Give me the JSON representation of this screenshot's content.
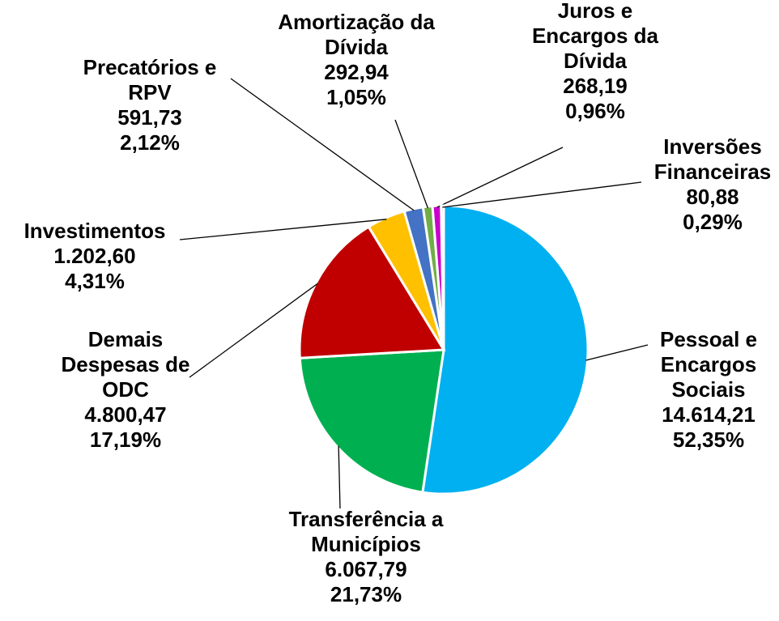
{
  "chart_data": {
    "type": "pie",
    "categories": [
      "Pessoal e Encargos Sociais",
      "Transferência a Municípios",
      "Demais Despesas de ODC",
      "Investimentos",
      "Precatórios e RPV",
      "Amortização da Dívida",
      "Juros e Encargos da Dívida",
      "Inversões Financeiras"
    ],
    "values": [
      14614.21,
      6067.79,
      4800.47,
      1202.6,
      591.73,
      292.94,
      268.19,
      80.88
    ],
    "value_labels": [
      "14.614,21",
      "6.067,79",
      "4.800,47",
      "1.202,60",
      "591,73",
      "292,94",
      "268,19",
      "80,88"
    ],
    "percentages": [
      52.35,
      21.73,
      17.19,
      4.31,
      2.12,
      1.05,
      0.96,
      0.29
    ],
    "percentage_labels": [
      "52,35%",
      "21,73%",
      "17,19%",
      "4,31%",
      "2,12%",
      "1,05%",
      "0,96%",
      "0,29%"
    ],
    "colors": [
      "#00b0f0",
      "#00b050",
      "#c00000",
      "#ffc000",
      "#4472c4",
      "#70ad47",
      "#cc00cc",
      "#7f7f7f"
    ]
  }
}
